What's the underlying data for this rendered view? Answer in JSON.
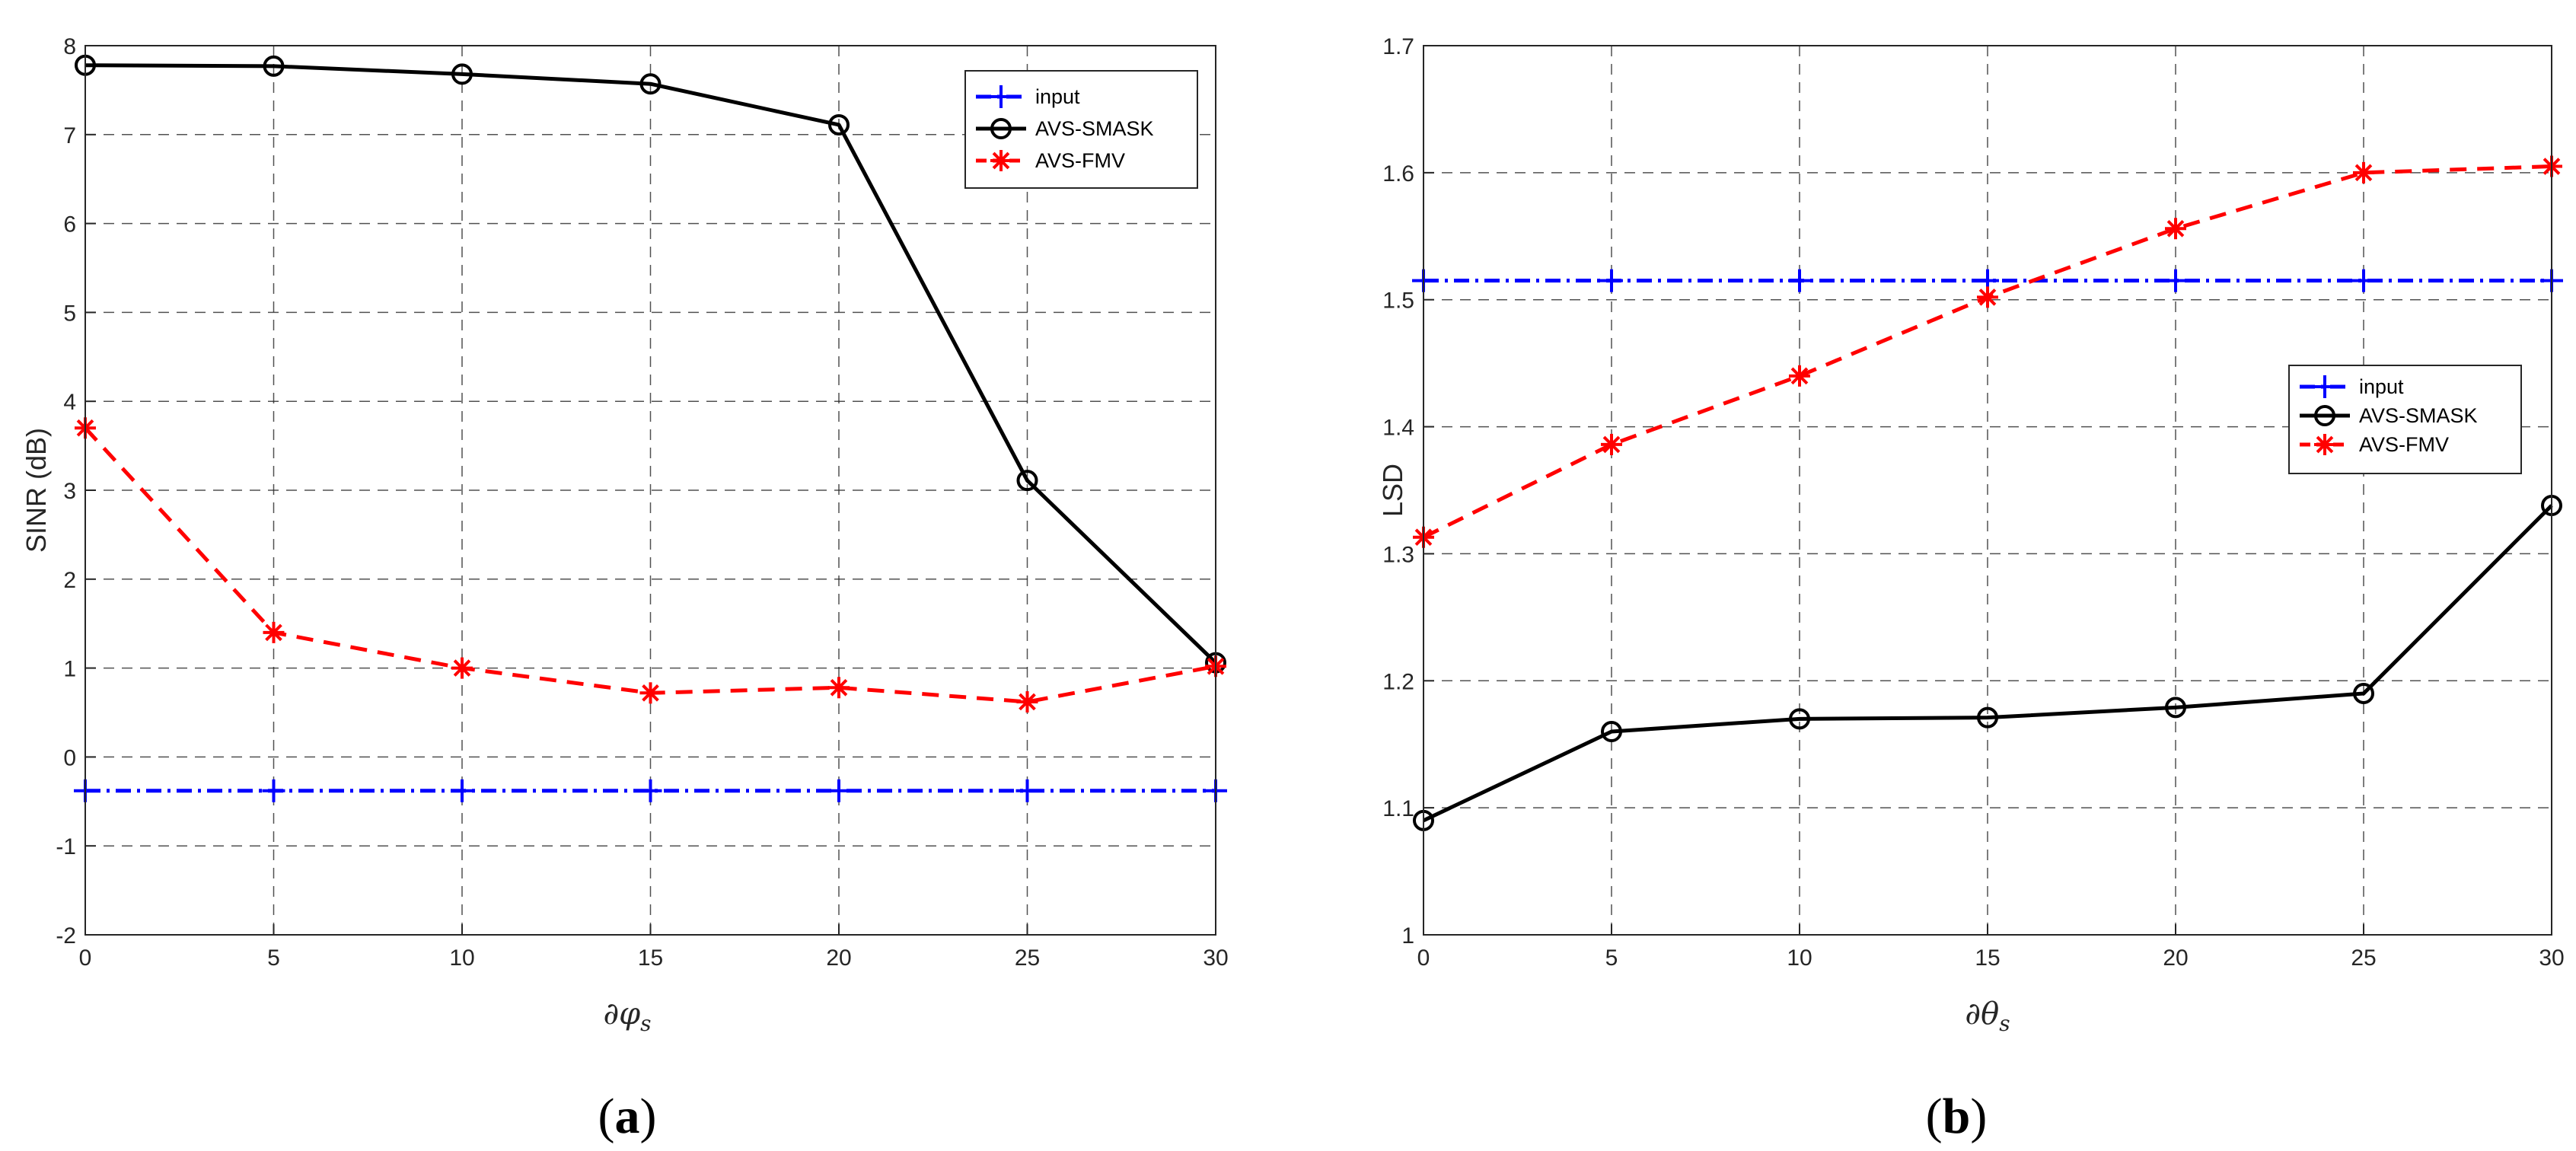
{
  "chart_data": [
    {
      "type": "line",
      "panel_label": "a",
      "xlabel": "∂φ",
      "xlabel_sub": "s",
      "ylabel": "SINR (dB)",
      "x": [
        0,
        5,
        10,
        15,
        20,
        25,
        30
      ],
      "xlim": [
        0,
        30
      ],
      "ylim": [
        -2,
        8
      ],
      "xticks": [
        0,
        5,
        10,
        15,
        20,
        25,
        30
      ],
      "yticks": [
        -2,
        -1,
        0,
        1,
        2,
        3,
        4,
        5,
        6,
        7,
        8
      ],
      "grid": true,
      "legend_position": "top-right",
      "series": [
        {
          "name": "input",
          "values": [
            -0.38,
            -0.38,
            -0.38,
            -0.38,
            -0.38,
            -0.38,
            -0.38
          ],
          "color": "#0000ff",
          "marker": "plus",
          "line": "dashdot"
        },
        {
          "name": "AVS-SMASK",
          "values": [
            7.78,
            7.77,
            7.68,
            7.57,
            7.11,
            3.11,
            1.06
          ],
          "color": "#000000",
          "marker": "circle",
          "line": "solid"
        },
        {
          "name": "AVS-FMV",
          "values": [
            3.7,
            1.4,
            1.0,
            0.72,
            0.78,
            0.62,
            1.02
          ],
          "color": "#ff0000",
          "marker": "star",
          "line": "dashed"
        }
      ]
    },
    {
      "type": "line",
      "panel_label": "b",
      "xlabel": "∂θ",
      "xlabel_sub": "s",
      "ylabel": "LSD",
      "x": [
        0,
        5,
        10,
        15,
        20,
        25,
        30
      ],
      "xlim": [
        0,
        30
      ],
      "ylim": [
        1,
        1.7
      ],
      "xticks": [
        0,
        5,
        10,
        15,
        20,
        25,
        30
      ],
      "yticks": [
        1,
        1.1,
        1.2,
        1.3,
        1.4,
        1.5,
        1.6,
        1.7
      ],
      "ytick_labels": [
        "1",
        "1.1",
        "1.2",
        "1.3",
        "1.4",
        "1.5",
        "1.6",
        "1.7"
      ],
      "grid": true,
      "legend_position": "center-right",
      "series": [
        {
          "name": "input",
          "values": [
            1.515,
            1.515,
            1.515,
            1.515,
            1.515,
            1.515,
            1.515
          ],
          "color": "#0000ff",
          "marker": "plus",
          "line": "dashdot"
        },
        {
          "name": "AVS-SMASK",
          "values": [
            1.09,
            1.16,
            1.17,
            1.171,
            1.179,
            1.19,
            1.338
          ],
          "color": "#000000",
          "marker": "circle",
          "line": "solid"
        },
        {
          "name": "AVS-FMV",
          "values": [
            1.313,
            1.386,
            1.44,
            1.502,
            1.556,
            1.6,
            1.605
          ],
          "color": "#ff0000",
          "marker": "star",
          "line": "dashed"
        }
      ]
    }
  ]
}
